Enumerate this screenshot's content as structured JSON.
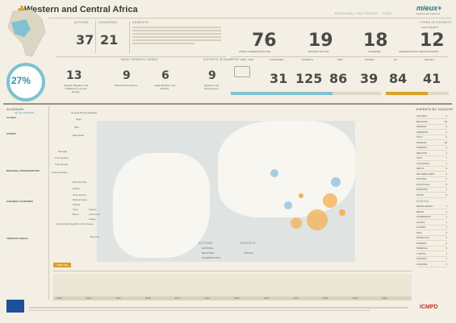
{
  "header": {
    "title": "Western and Central Africa",
    "subtitle": "REGIONAL FACTSHEET - 2020",
    "logo": "mieux+",
    "logo_sub": "migration EU expertise"
  },
  "stats_top": {
    "actions_label": "ACTIONS",
    "actions_value": "37",
    "countries_label": "COUNTRIES",
    "countries_value": "21",
    "domestic_label": "DOMESTIC",
    "themes_label": "MAIN THEMATIC AREAS",
    "percentage": "27%",
    "percentage_label": "OF ALL ACTIONS",
    "themes": [
      {
        "value": "13",
        "label": "Irregular Migration and Trafficking in Human Beings"
      },
      {
        "value": "9",
        "label": "National Interventions"
      },
      {
        "value": "6",
        "label": "Legal Migration and Mobility"
      },
      {
        "value": "9",
        "label": "Migration and Development"
      }
    ]
  },
  "stats_right": {
    "types_label": "TYPES OF EXPERTS",
    "items": [
      {
        "value": "76",
        "label": "PUBLIC ADMINISTRATIONS"
      },
      {
        "value": "19",
        "label": "PRIVATE SECTOR"
      },
      {
        "value": "18",
        "label": "ACADEMIA"
      },
      {
        "value": "12",
        "label": "INTERNATIONAL ORGANISATIONS"
      }
    ],
    "civil_label": "CIVIL SOCIETY",
    "experts_label": "EXPERTS IN NUMBERS",
    "period": "2009 - 2020",
    "numbers": [
      {
        "value": "31",
        "label": "COUNTRIES"
      },
      {
        "value": "125",
        "label": "EXPERTS"
      },
      {
        "value": "86",
        "label": "MEN"
      },
      {
        "value": "39",
        "label": "WOMEN"
      },
      {
        "value": "84",
        "label": "EU"
      },
      {
        "value": "41",
        "label": "NON-EU"
      }
    ]
  },
  "sidebar": {
    "glossary": "GLOSSARY",
    "items": [
      "ACTION",
      "EXPERT",
      "REGIONAL INTERVENTIONS",
      "PARTNER COUNTRIES",
      "THEMATIC AREAS"
    ]
  },
  "map_labels": [
    "Central African Republic",
    "Niger",
    "Mali",
    "Mauritania",
    "Senegal",
    "The Gambia",
    "Cote d'Ivoire",
    "Guinea-Bissau",
    "Burkina Faso",
    "Ghana",
    "Cote d'Ivoire",
    "Burkina Faso",
    "Ghana",
    "Togo",
    "Benin",
    "Nigeria",
    "Cameroon",
    "Gabon",
    "Democratic Republic of the Congo",
    "Burundi"
  ],
  "legend": {
    "actions_title": "ACTIONS",
    "experts_title": "EXPERTS",
    "items": [
      "NATIONAL",
      "REGIONAL",
      "INTERNATIONAL",
      "NON-EU"
    ]
  },
  "right_table": {
    "title": "EXPERTS BY COUNTRY",
    "rows": [
      [
        "AUSTRIA",
        "2"
      ],
      [
        "BELGIUM",
        "10"
      ],
      [
        "FRANCE",
        "3"
      ],
      [
        "GERMANY",
        "2"
      ],
      [
        "ITALY",
        "2"
      ],
      [
        "FRANCE",
        "28"
      ],
      [
        "GREECE",
        "1"
      ],
      [
        "IRELAND",
        "1"
      ],
      [
        "ITALY",
        "7"
      ],
      [
        "LITHUANIA",
        "1"
      ],
      [
        "MALTA",
        "2"
      ],
      [
        "NETHERLANDS",
        "2"
      ],
      [
        "POLAND",
        "1"
      ],
      [
        "PORTUGAL",
        "5"
      ],
      [
        "ROMANIA",
        "1"
      ],
      [
        "SPAIN",
        "9"
      ]
    ],
    "rows2_title": "NON-EU",
    "rows2": [
      [
        "BANGLADESH",
        "1"
      ],
      [
        "BENIN",
        "1"
      ],
      [
        "CAMEROON",
        "1"
      ],
      [
        "GHANA",
        "1"
      ],
      [
        "GUINEA",
        "1"
      ],
      [
        "MALI",
        "2"
      ],
      [
        "MOROCCO",
        "1"
      ],
      [
        "NIGERIA",
        "2"
      ],
      [
        "SENEGAL",
        "3"
      ],
      [
        "TUNISIA",
        "1"
      ],
      [
        "UGANDA",
        "1"
      ],
      [
        "UKRAINE",
        "1"
      ]
    ]
  },
  "timeline": {
    "button": "TIMELINE",
    "years": [
      "2009",
      "2010",
      "2011",
      "2012",
      "2013",
      "2014",
      "2015",
      "2016",
      "2017",
      "2018",
      "2019",
      "2020"
    ]
  },
  "colors": {
    "accent": "#d9a02a",
    "teal": "#7fc2d1",
    "red": "#c0392b"
  }
}
